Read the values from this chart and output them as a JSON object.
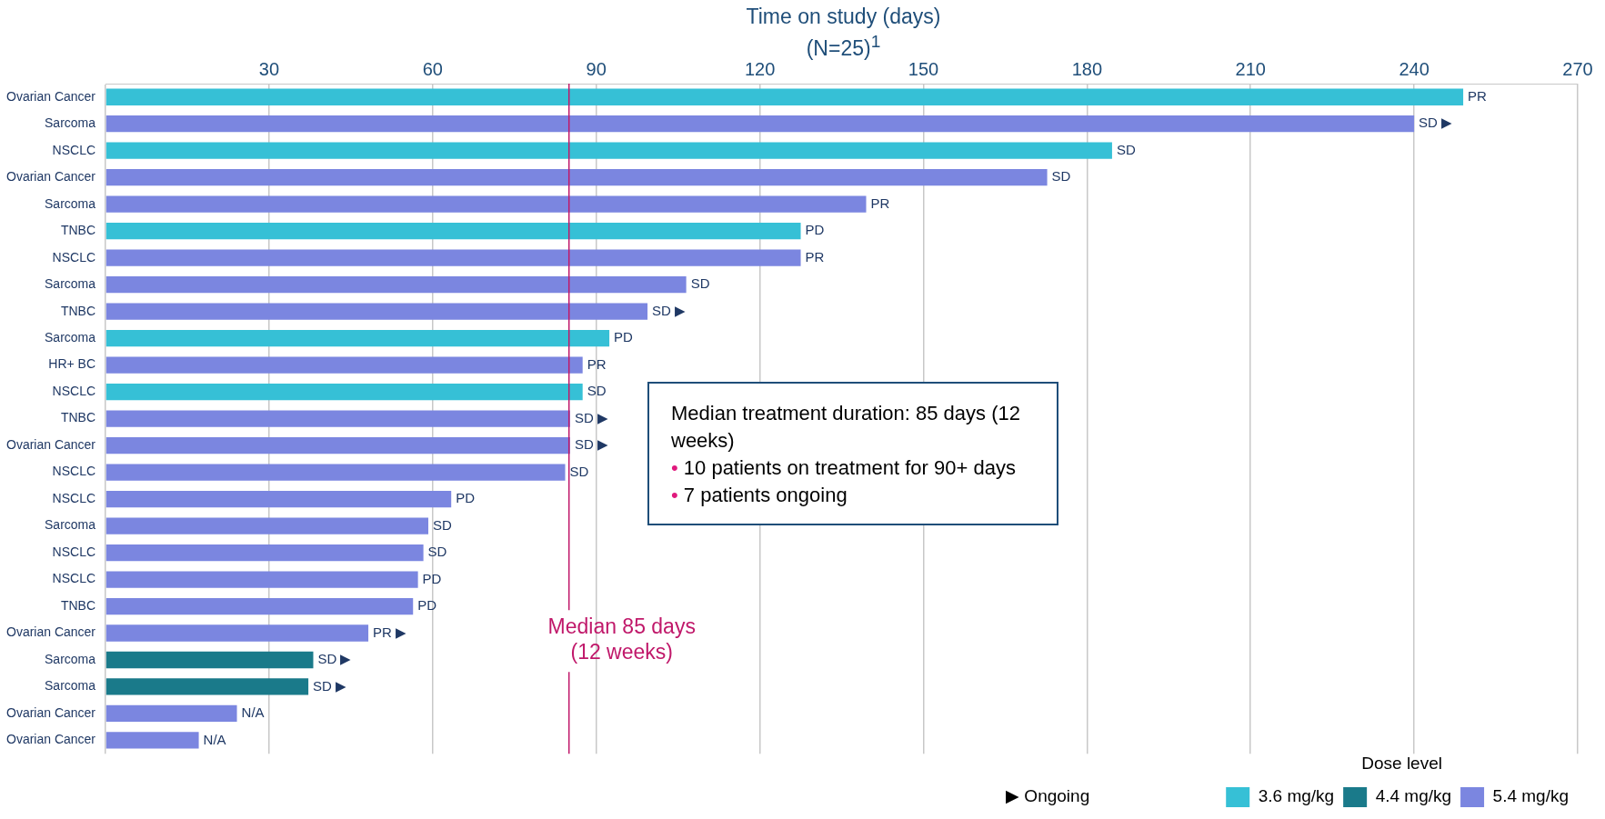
{
  "chart_data": {
    "type": "bar",
    "orientation": "horizontal",
    "stacked": true,
    "title": "Time on study (days)",
    "subtitle": "(N=25)$^{1}$",
    "categories": [
      "Ovarian Cancer",
      "Sarcoma",
      "NSCLC",
      "Ovarian Cancer",
      "Sarcoma",
      "TNBC",
      "NSCLC",
      "Sarcoma",
      "TNBC",
      "Sarcoma",
      "HR+ BC",
      "NSCLC",
      "TNBC",
      "Ovarian Cancer",
      "NSCLC",
      "NSCLC",
      "Sarcoma",
      "NSCLC",
      "NSCLC",
      "TNBC",
      "Ovarian Cancer",
      "Sarcoma",
      "Sarcoma",
      "Ovarian Cancer",
      "Ovarian Cancer"
    ],
    "series": [
      {
        "name": "3.6 mg/kg",
        "color": "#36c0d6",
        "values": [
          249,
          null,
          184.6,
          null,
          null,
          127.5,
          null,
          null,
          null,
          92.4,
          null,
          87.5,
          null,
          null,
          null,
          null,
          null,
          null,
          null,
          null,
          null,
          null,
          null,
          null,
          null
        ],
        "value_labels": [
          "PR",
          null,
          "SD",
          null,
          null,
          "PD",
          null,
          null,
          null,
          "PD",
          null,
          "SD",
          null,
          null,
          null,
          null,
          null,
          null,
          null,
          null,
          null,
          null,
          null,
          null,
          null
        ]
      },
      {
        "name": "4.4 mg/kg",
        "color": "#1a7a8a",
        "values": [
          null,
          null,
          null,
          null,
          null,
          null,
          null,
          null,
          null,
          null,
          null,
          null,
          null,
          null,
          null,
          null,
          null,
          null,
          null,
          null,
          null,
          38.1,
          37.2,
          null,
          null
        ],
        "value_labels": [
          null,
          null,
          null,
          null,
          null,
          null,
          null,
          null,
          null,
          null,
          null,
          null,
          null,
          null,
          null,
          null,
          null,
          null,
          null,
          null,
          null,
          "SD ▶",
          "SD ▶",
          null,
          null
        ]
      },
      {
        "name": "5.4 mg/kg",
        "color": "#7b86e0",
        "values": [
          null,
          240,
          null,
          172.7,
          139.5,
          null,
          127.5,
          106.5,
          99.4,
          null,
          87.5,
          null,
          85.2,
          85.2,
          84.3,
          63.4,
          59.2,
          58.3,
          57.3,
          56.4,
          48.2,
          null,
          null,
          24.1,
          17.1
        ],
        "value_labels": [
          null,
          "SD ▶",
          null,
          "SD",
          "PR",
          null,
          "PR",
          "SD",
          "SD ▶",
          null,
          "PR",
          null,
          "SD ▶",
          "SD ▶",
          "SD",
          "PD",
          "SD",
          "SD",
          "PD",
          "PD",
          "PR ▶",
          null,
          null,
          "N/A",
          "N/A"
        ]
      }
    ],
    "xlim": [
      0,
      270
    ],
    "xticks": [
      {
        "value": 0,
        "label": null
      },
      30,
      60,
      90,
      120,
      150,
      180,
      210,
      240,
      270
    ],
    "grid": "x",
    "legend": "bottom right",
    "legend_title": "Dose level",
    "ref_lines": [
      {
        "axis": "x",
        "value": 85,
        "label": "Median 85 days\n(12 weeks)",
        "color": "#c0186a"
      }
    ],
    "annotations": [
      "Median treatment duration: 85 days (12 weeks)",
      "• 10 patients on treatment for 90+ days",
      "• 7 patients ongoing",
      "▶ Ongoing"
    ]
  }
}
